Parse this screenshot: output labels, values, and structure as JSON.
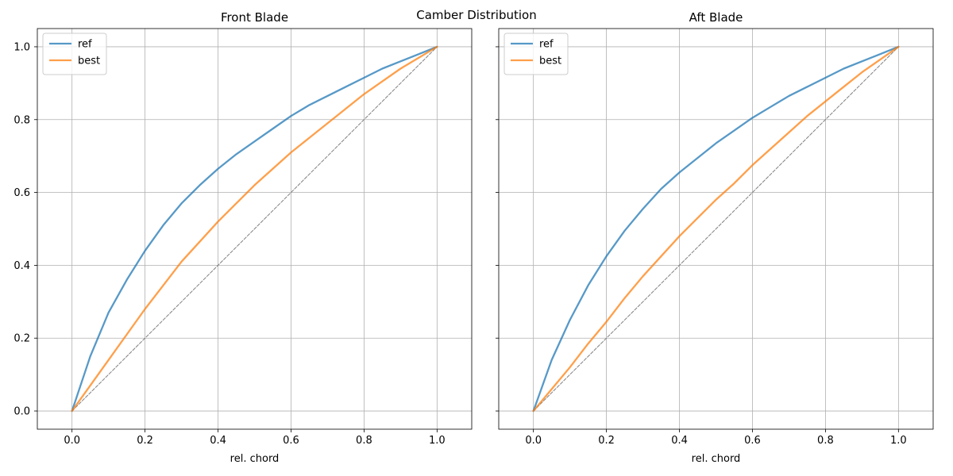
{
  "figure": {
    "suptitle": "Camber Distribution"
  },
  "chart_data": [
    {
      "type": "line",
      "title": "Front Blade",
      "xlabel": "rel. chord",
      "ylabel": "",
      "xlim": [
        -0.095,
        1.095
      ],
      "ylim": [
        -0.05,
        1.05
      ],
      "xticks": [
        "0.0",
        "0.2",
        "0.4",
        "0.6",
        "0.8",
        "1.0"
      ],
      "yticks": [
        "0.0",
        "0.2",
        "0.4",
        "0.6",
        "0.8",
        "1.0"
      ],
      "show_ytick_labels": true,
      "grid": true,
      "legend": "upper-left",
      "series": [
        {
          "name": "ref",
          "color": "#1f77b4",
          "x": [
            0.0,
            0.05,
            0.1,
            0.15,
            0.2,
            0.25,
            0.3,
            0.35,
            0.4,
            0.45,
            0.5,
            0.55,
            0.6,
            0.65,
            0.7,
            0.75,
            0.8,
            0.85,
            0.9,
            0.95,
            1.0
          ],
          "y": [
            0.0,
            0.15,
            0.27,
            0.36,
            0.44,
            0.51,
            0.57,
            0.62,
            0.665,
            0.705,
            0.74,
            0.775,
            0.81,
            0.84,
            0.865,
            0.89,
            0.915,
            0.94,
            0.96,
            0.98,
            1.0
          ]
        },
        {
          "name": "best",
          "color": "#ff7f0e",
          "x": [
            0.0,
            0.05,
            0.1,
            0.15,
            0.2,
            0.25,
            0.3,
            0.35,
            0.4,
            0.45,
            0.5,
            0.55,
            0.6,
            0.65,
            0.7,
            0.75,
            0.8,
            0.85,
            0.9,
            0.95,
            1.0
          ],
          "y": [
            0.0,
            0.07,
            0.14,
            0.21,
            0.28,
            0.345,
            0.41,
            0.465,
            0.52,
            0.57,
            0.62,
            0.665,
            0.71,
            0.75,
            0.79,
            0.83,
            0.87,
            0.905,
            0.94,
            0.97,
            1.0
          ]
        },
        {
          "name": "",
          "color": "#808080",
          "dashed": true,
          "x": [
            0.0,
            1.0
          ],
          "y": [
            0.0,
            1.0
          ]
        }
      ]
    },
    {
      "type": "line",
      "title": "Aft Blade",
      "xlabel": "rel. chord",
      "ylabel": "",
      "xlim": [
        -0.095,
        1.095
      ],
      "ylim": [
        -0.05,
        1.05
      ],
      "xticks": [
        "0.0",
        "0.2",
        "0.4",
        "0.6",
        "0.8",
        "1.0"
      ],
      "yticks": [
        "0.0",
        "0.2",
        "0.4",
        "0.6",
        "0.8",
        "1.0"
      ],
      "show_ytick_labels": false,
      "grid": true,
      "legend": "upper-left",
      "series": [
        {
          "name": "ref",
          "color": "#1f77b4",
          "x": [
            0.0,
            0.05,
            0.1,
            0.15,
            0.2,
            0.25,
            0.3,
            0.35,
            0.4,
            0.45,
            0.5,
            0.55,
            0.6,
            0.65,
            0.7,
            0.75,
            0.8,
            0.85,
            0.9,
            0.95,
            1.0
          ],
          "y": [
            0.0,
            0.14,
            0.25,
            0.345,
            0.425,
            0.495,
            0.555,
            0.61,
            0.655,
            0.695,
            0.735,
            0.77,
            0.805,
            0.835,
            0.865,
            0.89,
            0.915,
            0.94,
            0.96,
            0.98,
            1.0
          ]
        },
        {
          "name": "best",
          "color": "#ff7f0e",
          "x": [
            0.0,
            0.05,
            0.1,
            0.15,
            0.2,
            0.25,
            0.3,
            0.35,
            0.4,
            0.45,
            0.5,
            0.55,
            0.6,
            0.65,
            0.7,
            0.75,
            0.8,
            0.85,
            0.9,
            0.95,
            1.0
          ],
          "y": [
            0.0,
            0.06,
            0.12,
            0.185,
            0.245,
            0.31,
            0.37,
            0.425,
            0.48,
            0.53,
            0.58,
            0.625,
            0.675,
            0.72,
            0.765,
            0.81,
            0.85,
            0.89,
            0.93,
            0.965,
            1.0
          ]
        },
        {
          "name": "",
          "color": "#808080",
          "dashed": true,
          "x": [
            0.0,
            1.0
          ],
          "y": [
            0.0,
            1.0
          ]
        }
      ]
    }
  ]
}
